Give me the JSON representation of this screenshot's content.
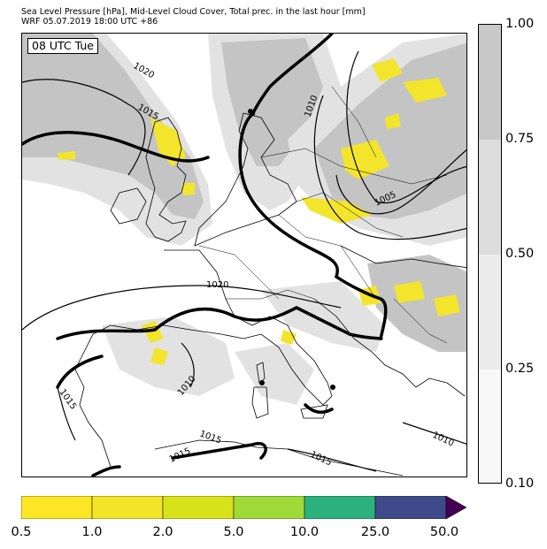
{
  "title": {
    "line1": "Sea Level Pressure [hPa], Mid-Level Cloud Cover, Total prec. in the last hour [mm]",
    "line2": "WRF 05.07.2019 18:00 UTC +86"
  },
  "time_label": "08 UTC Tue",
  "isobar_labels": [
    "1020",
    "1015",
    "1010",
    "1005",
    "1020",
    "1015",
    "1010",
    "1015",
    "1015",
    "1015",
    "1010"
  ],
  "cloud_colorbar": {
    "ticks": [
      "1.00",
      "0.75",
      "0.50",
      "0.25",
      "0.10"
    ],
    "colors": [
      "#c8c8c8",
      "#dcdcdc",
      "#ececec",
      "#f8f8f8"
    ]
  },
  "precip_colorbar": {
    "ticks": [
      "0.5",
      "1.0",
      "2.0",
      "5.0",
      "10.0",
      "25.0",
      "50.0"
    ],
    "colors": [
      "#fde725",
      "#f2e427",
      "#d8e219",
      "#a0da39",
      "#2db27d",
      "#3e4a89",
      "#440154"
    ]
  },
  "colors": {
    "land": "#ffffff",
    "outline": "#000000",
    "cloud_light": "#e2e2e2",
    "cloud_dark": "#c4c4c4",
    "precip": "#f3e52c"
  }
}
